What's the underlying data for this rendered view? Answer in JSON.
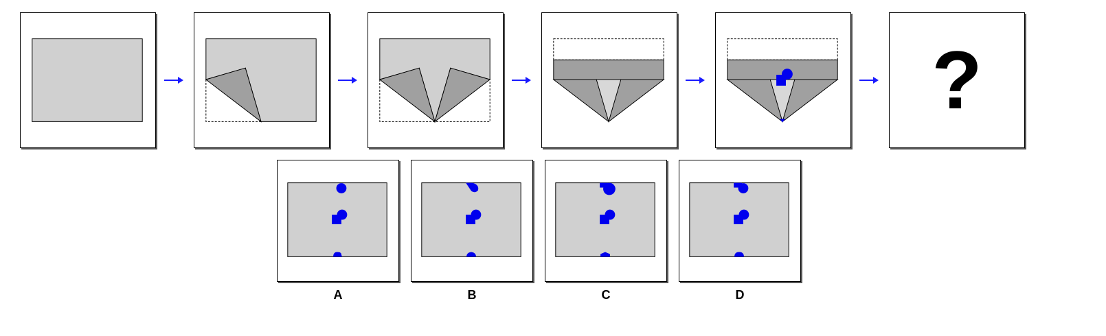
{
  "colors": {
    "paper": "#d0d0d0",
    "fold": "#a0a0a0",
    "inner": "#d8d8d8",
    "hole": "#0000ee",
    "arrow": "#1a1aff",
    "border": "#000000"
  },
  "sequence": {
    "steps": [
      {
        "name": "flat-paper"
      },
      {
        "name": "fold-left-corner"
      },
      {
        "name": "fold-right-corner"
      },
      {
        "name": "fold-top-down"
      },
      {
        "name": "punch-holes"
      }
    ],
    "question_mark": "?"
  },
  "options": [
    {
      "label": "A"
    },
    {
      "label": "B"
    },
    {
      "label": "C"
    },
    {
      "label": "D"
    }
  ]
}
